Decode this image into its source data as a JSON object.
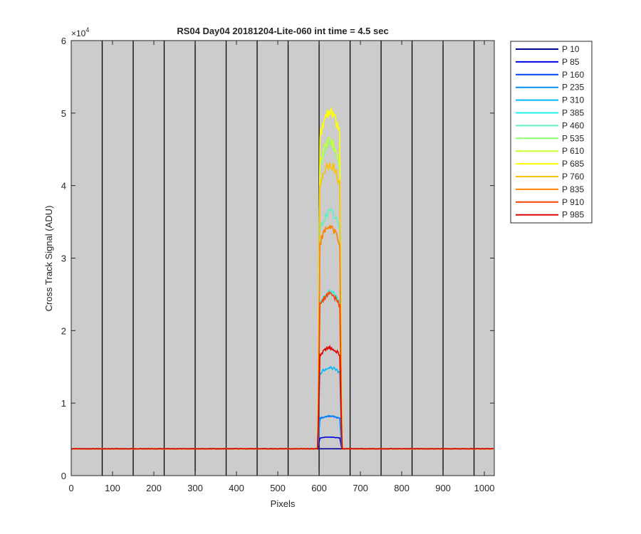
{
  "chart_data": {
    "type": "line",
    "title": "RS04 Day04 20181204-Lite-060 int time = 4.5 sec",
    "xlabel": "Pixels",
    "ylabel": "Cross Track Signal (ADU)",
    "y_exponent_label": "×10",
    "y_exponent": "4",
    "xlim": [
      0,
      1024
    ],
    "ylim": [
      0,
      60000
    ],
    "x_ticks": [
      0,
      100,
      200,
      300,
      400,
      500,
      600,
      700,
      800,
      900,
      1000
    ],
    "y_ticks": [
      0,
      1,
      2,
      3,
      4,
      5,
      6
    ],
    "y_tick_scale": 10000,
    "grid": "off",
    "background_color": "#cccccc",
    "legend_position": "outside-right",
    "vertical_markers_x": [
      75,
      150,
      225,
      300,
      375,
      450,
      525,
      600,
      675,
      750,
      825,
      900,
      975
    ],
    "baseline": 3700,
    "pulse_x_range": [
      597,
      655
    ],
    "series": [
      {
        "name": "P 10",
        "color": "#00008f",
        "peak": 3700
      },
      {
        "name": "P 85",
        "color": "#0000e0",
        "peak": 5300
      },
      {
        "name": "P 160",
        "color": "#0040ff",
        "peak": 8200
      },
      {
        "name": "P 235",
        "color": "#0090ff",
        "peak": 8200
      },
      {
        "name": "P 310",
        "color": "#00b8ff",
        "peak": 14900
      },
      {
        "name": "P 385",
        "color": "#20f0f0",
        "peak": 25300
      },
      {
        "name": "P 460",
        "color": "#60f0c0",
        "peak": 36300
      },
      {
        "name": "P 535",
        "color": "#90ff70",
        "peak": 45800
      },
      {
        "name": "P 610",
        "color": "#c8ff30",
        "peak": 46000
      },
      {
        "name": "P 685",
        "color": "#ffff00",
        "peak": 50200
      },
      {
        "name": "P 760",
        "color": "#ffc000",
        "peak": 43000
      },
      {
        "name": "P 835",
        "color": "#ff8000",
        "peak": 34300
      },
      {
        "name": "P 910",
        "color": "#ff4000",
        "peak": 25000
      },
      {
        "name": "P 985",
        "color": "#e00000",
        "peak": 17600
      }
    ]
  }
}
